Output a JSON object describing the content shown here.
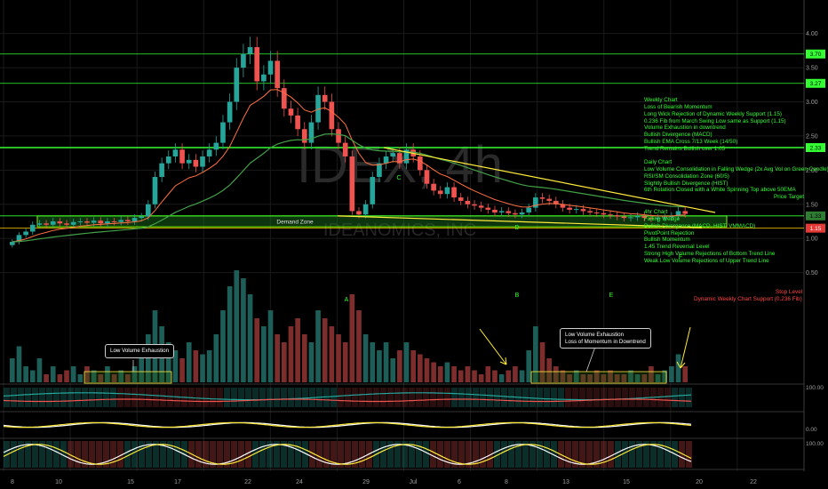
{
  "chart_data": {
    "type": "candlestick",
    "symbol_watermark": "IDEX, 4h",
    "watermark_sub": "IDEANOMICS, INC",
    "x_ticks": [
      "8",
      "10",
      "15",
      "17",
      "22",
      "24",
      "29",
      "Jul",
      "6",
      "8",
      "13",
      "15",
      "20",
      "22"
    ],
    "y_ticks": [
      "4.00",
      "3.50",
      "3.00",
      "2.50",
      "2.00",
      "1.50",
      "1.00",
      "0.50"
    ],
    "ylim": [
      0,
      4.1
    ],
    "levels": [
      {
        "label": "3.70",
        "value": 3.7,
        "color": "#33ff33"
      },
      {
        "label": "3.27",
        "value": 3.27,
        "color": "#33ff33"
      },
      {
        "label": "2.33",
        "value": 2.33,
        "color": "#33ff33"
      },
      {
        "label": "1.33",
        "value": 1.33,
        "color": "#2e7d32"
      },
      {
        "label": "1.15",
        "value": 1.15,
        "color": "#e53935"
      }
    ],
    "line_labels": {
      "price_target": "Price Target",
      "stop_level": "Stop Level",
      "dynamic_support": "Dynamic Weekly Chart Support (0.236 Fib)"
    },
    "demand_zone": {
      "label": "Demand Zone",
      "low": 1.17,
      "high": 1.33
    },
    "pattern_points": [
      "A",
      "B",
      "C",
      "D",
      "E",
      "F"
    ],
    "closes": [
      0.95,
      1.05,
      1.1,
      1.2,
      1.22,
      1.2,
      1.25,
      1.22,
      1.2,
      1.24,
      1.25,
      1.23,
      1.26,
      1.22,
      1.25,
      1.24,
      1.27,
      1.25,
      1.3,
      1.32,
      1.5,
      1.9,
      2.1,
      2.2,
      2.3,
      2.1,
      2.15,
      2.05,
      2.2,
      2.3,
      2.4,
      2.7,
      3.0,
      3.5,
      3.7,
      3.8,
      3.3,
      3.4,
      3.6,
      3.2,
      2.9,
      2.8,
      2.6,
      2.4,
      2.7,
      3.1,
      3.0,
      2.6,
      2.4,
      2.2,
      1.4,
      1.35,
      1.5,
      1.9,
      2.1,
      2.2,
      2.25,
      2.1,
      2.3,
      2.2,
      2.0,
      1.8,
      1.7,
      1.65,
      1.75,
      1.6,
      1.55,
      1.5,
      1.48,
      1.45,
      1.42,
      1.38,
      1.4,
      1.37,
      1.35,
      1.38,
      1.45,
      1.6,
      1.58,
      1.55,
      1.5,
      1.45,
      1.42,
      1.43,
      1.4,
      1.38,
      1.37,
      1.35,
      1.34,
      1.32,
      1.3,
      1.31,
      1.33,
      1.3,
      1.29,
      1.3,
      1.31,
      1.33,
      1.4,
      1.36
    ],
    "volumes": [
      0.3,
      0.45,
      0.2,
      0.15,
      0.3,
      0.1,
      0.2,
      0.1,
      0.15,
      0.2,
      0.1,
      0.2,
      0.15,
      0.1,
      0.2,
      0.1,
      0.15,
      0.1,
      0.2,
      0.3,
      0.6,
      0.9,
      0.7,
      0.5,
      0.4,
      0.3,
      0.5,
      0.4,
      0.35,
      0.4,
      0.6,
      0.9,
      1.2,
      1.4,
      1.3,
      1.1,
      0.8,
      0.7,
      0.9,
      0.6,
      0.5,
      0.7,
      0.8,
      0.6,
      0.5,
      0.9,
      0.8,
      0.7,
      0.6,
      0.5,
      1.1,
      0.9,
      0.6,
      0.5,
      0.4,
      0.5,
      0.3,
      0.4,
      0.5,
      0.4,
      0.35,
      0.3,
      0.25,
      0.2,
      0.25,
      0.2,
      0.15,
      0.2,
      0.15,
      0.1,
      0.2,
      0.15,
      0.1,
      0.15,
      0.2,
      0.15,
      0.4,
      0.7,
      0.5,
      0.3,
      0.2,
      0.15,
      0.1,
      0.15,
      0.1,
      0.1,
      0.15,
      0.1,
      0.15,
      0.1,
      0.1,
      0.15,
      0.1,
      0.1,
      0.2,
      0.1,
      0.15,
      0.2,
      0.35,
      0.2
    ],
    "volume_ticks": [
      "100.00",
      "0.00",
      "100.00"
    ]
  },
  "annotations": {
    "weekly": [
      "Weekly Chart",
      "Loss of Bearish Momentum",
      "Long Wick Rejection of Dynamic Weekly Support (1.15)",
      "0.236 Fib from March Swing Low same as Support (1.15)",
      "Volume Exhaustion in downtrend",
      "Bullish Divergence (MACD)",
      "Bullish EMA Cross 7/13 Week (14/50)",
      "Trend Remains Bullish over 1.05"
    ],
    "daily": [
      "Daily Chart",
      "Low Volume Consolidation in Falling Wedge (2x Avg Vol on Green Candle)",
      "RSI/SM Consolidation Zone (60/5)",
      "Slightly Bullish Divergence (HIST)",
      "6th Rotation Closed with a White Spinning Top above 50EMA"
    ],
    "four_hour": [
      "4hr Chart",
      "Falling Wedge",
      "Bullish Divergence (MACD, HIST, VMMACD)",
      "PivotPoint Rejection",
      "Bullish Momentum",
      "1.45 Trend Reversal Level",
      "Strong High Volume Rejections of Bottom Trend Line",
      "Weak Low Volume Rejections of Upper Trend Line"
    ],
    "callout_left": "Low Volume Exhaustion",
    "callout_right": [
      "Low Volume Exhaustion",
      "Loss of Momentum in Downtrend"
    ]
  }
}
